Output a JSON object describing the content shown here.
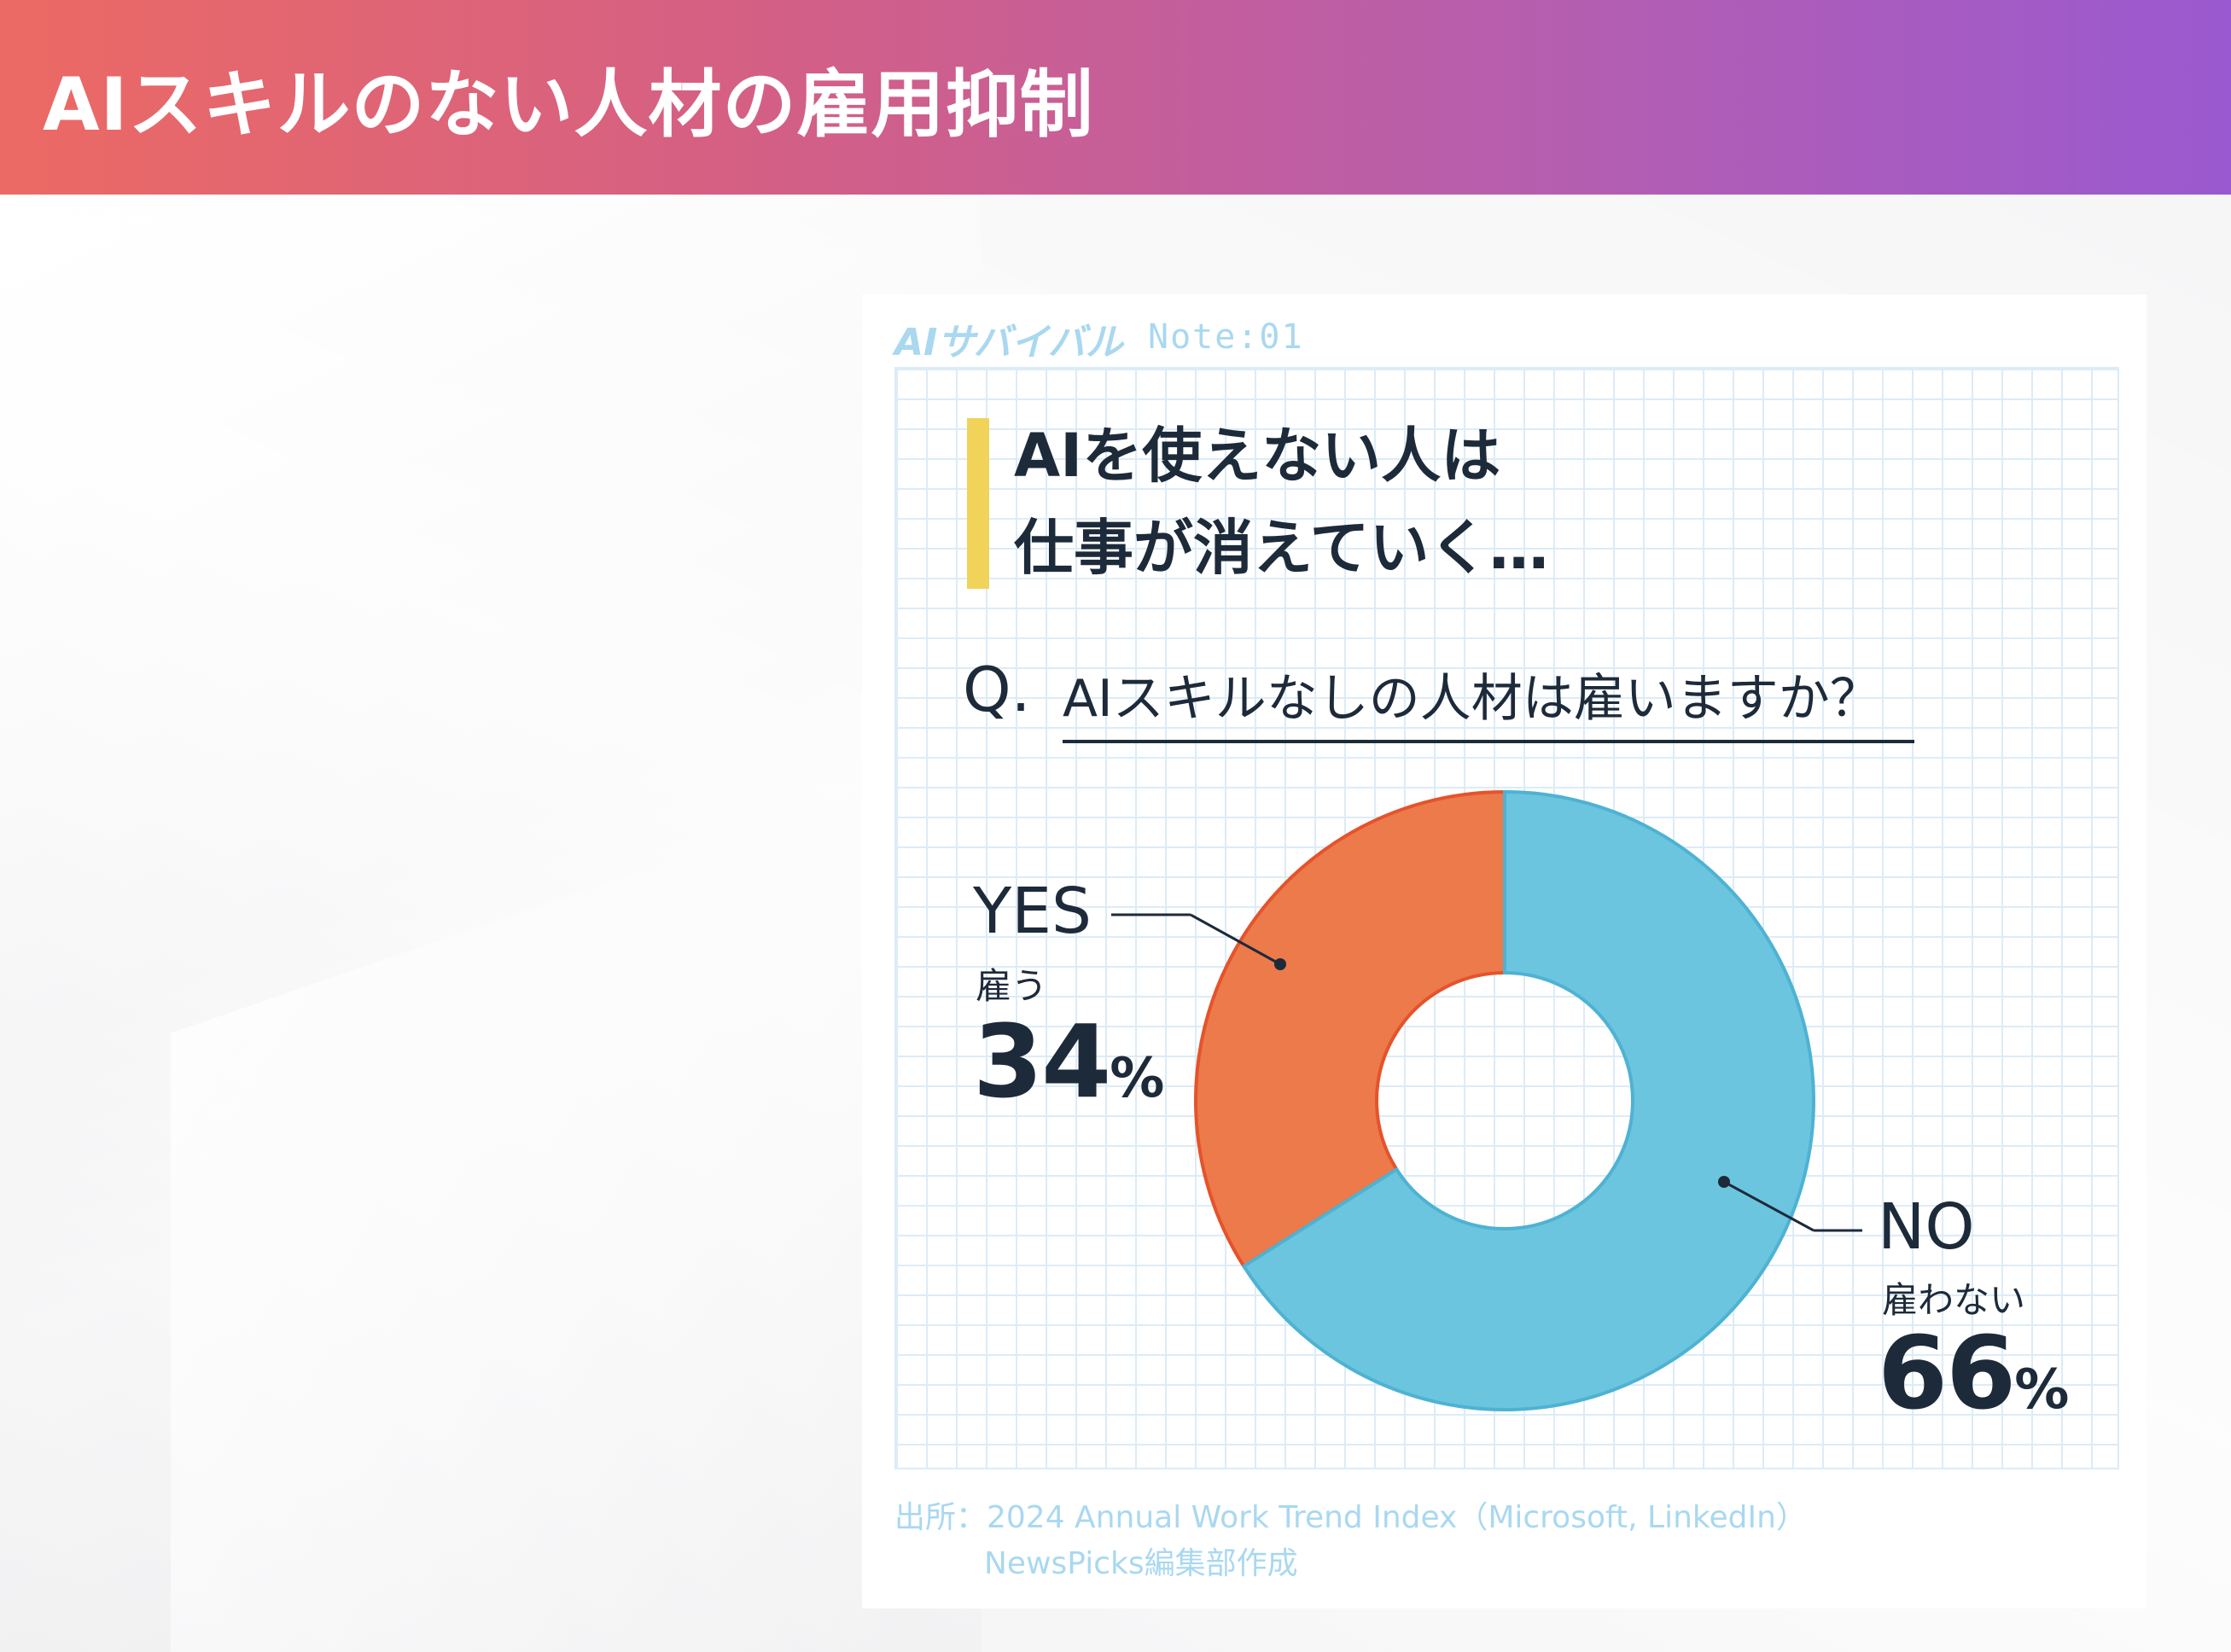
{
  "header": {
    "title": "AIスキルのない人材の雇用抑制"
  },
  "card": {
    "brand": "AIサバイバル",
    "note": "Note:01",
    "headline_line1": "AIを使えない人は",
    "headline_line2": "仕事が消えていく…",
    "question_mark": "Q.",
    "question": "AIスキルなしの人材は雇いますか？",
    "source_line1": "出所：2024 Annual Work Trend Index（Microsoft, LinkedIn）",
    "source_line2": "NewsPicks編集部作成"
  },
  "colors": {
    "yes": "#ec7a4b",
    "no": "#6cc5df",
    "header_start": "#ec6a64",
    "header_end": "#9a59d0",
    "accent": "#f1d35a"
  },
  "chart_data": {
    "type": "pie",
    "donut": true,
    "title": "AIスキルなしの人材は雇いますか？",
    "slices": [
      {
        "label": "YES",
        "sublabel": "雇う",
        "value": 34,
        "display": "34",
        "unit": "%"
      },
      {
        "label": "NO",
        "sublabel": "雇わない",
        "value": 66,
        "display": "66",
        "unit": "%"
      }
    ]
  }
}
